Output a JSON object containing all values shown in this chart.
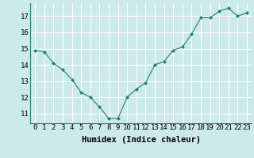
{
  "x": [
    0,
    1,
    2,
    3,
    4,
    5,
    6,
    7,
    8,
    9,
    10,
    11,
    12,
    13,
    14,
    15,
    16,
    17,
    18,
    19,
    20,
    21,
    22,
    23
  ],
  "y": [
    14.9,
    14.8,
    14.1,
    13.7,
    13.1,
    12.3,
    12.0,
    11.4,
    10.7,
    10.7,
    12.0,
    12.5,
    12.9,
    14.0,
    14.2,
    14.9,
    15.1,
    15.9,
    16.9,
    16.9,
    17.3,
    17.5,
    17.0,
    17.2
  ],
  "xlabel": "Humidex (Indice chaleur)",
  "xlim": [
    -0.5,
    23.5
  ],
  "ylim": [
    10.4,
    17.8
  ],
  "yticks": [
    11,
    12,
    13,
    14,
    15,
    16,
    17
  ],
  "xticks": [
    0,
    1,
    2,
    3,
    4,
    5,
    6,
    7,
    8,
    9,
    10,
    11,
    12,
    13,
    14,
    15,
    16,
    17,
    18,
    19,
    20,
    21,
    22,
    23
  ],
  "line_color": "#2d7b6f",
  "marker_color": "#2d7b6f",
  "bg_color": "#cceae7",
  "grid_color": "#ffffff",
  "xlabel_fontsize": 7.5,
  "tick_fontsize": 6.5
}
